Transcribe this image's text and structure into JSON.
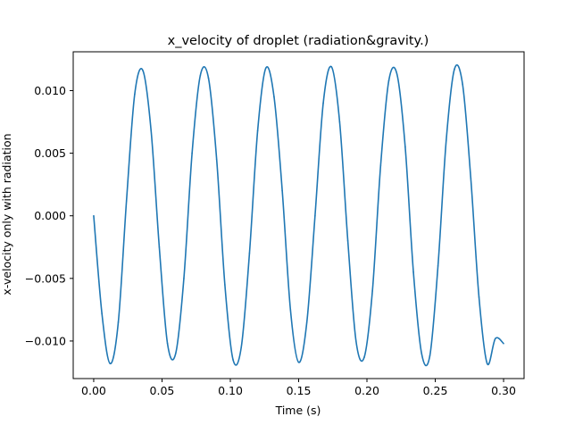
{
  "chart_data": {
    "type": "line",
    "title": "x_velocity of droplet (radiation&gravity.)",
    "xlabel": "Time (s)",
    "ylabel": "x-velocity only with radiation",
    "xlim": [
      -0.015,
      0.315
    ],
    "ylim": [
      -0.013,
      0.0131
    ],
    "x_ticks": [
      0.0,
      0.05,
      0.1,
      0.15,
      0.2,
      0.25,
      0.3
    ],
    "x_tick_labels": [
      "0.00",
      "0.05",
      "0.10",
      "0.15",
      "0.20",
      "0.25",
      "0.30"
    ],
    "y_ticks": [
      -0.01,
      -0.005,
      0.0,
      0.005,
      0.01
    ],
    "y_tick_labels": [
      "−0.010",
      "−0.005",
      "0.000",
      "0.005",
      "0.010"
    ],
    "grid": false,
    "legend": "none",
    "series": [
      {
        "color": "#1f77b4",
        "x": [
          0.0,
          0.006,
          0.012,
          0.018,
          0.024,
          0.03,
          0.036,
          0.042,
          0.048,
          0.054,
          0.06,
          0.066,
          0.072,
          0.078,
          0.084,
          0.09,
          0.096,
          0.102,
          0.108,
          0.114,
          0.12,
          0.126,
          0.132,
          0.138,
          0.144,
          0.15,
          0.156,
          0.162,
          0.168,
          0.174,
          0.18,
          0.186,
          0.192,
          0.198,
          0.204,
          0.21,
          0.216,
          0.222,
          0.228,
          0.234,
          0.24,
          0.246,
          0.252,
          0.258,
          0.264,
          0.27,
          0.276,
          0.282,
          0.288,
          0.294,
          0.3
        ],
        "y": [
          0.0,
          -0.0078,
          -0.0118,
          -0.0085,
          0.0012,
          0.0097,
          0.0116,
          0.0068,
          -0.0025,
          -0.0102,
          -0.011,
          -0.005,
          0.005,
          0.0112,
          0.011,
          0.0045,
          -0.0055,
          -0.0115,
          -0.0105,
          -0.003,
          0.0068,
          0.0118,
          0.0095,
          0.002,
          -0.0075,
          -0.0117,
          -0.0085,
          0.0,
          0.009,
          0.0119,
          0.0075,
          -0.002,
          -0.01,
          -0.0113,
          -0.006,
          0.004,
          0.0108,
          0.0113,
          0.0055,
          -0.0045,
          -0.011,
          -0.0112,
          -0.004,
          0.006,
          0.0117,
          0.0105,
          0.003,
          -0.0065,
          -0.0118,
          -0.0098,
          -0.0102
        ]
      }
    ]
  }
}
